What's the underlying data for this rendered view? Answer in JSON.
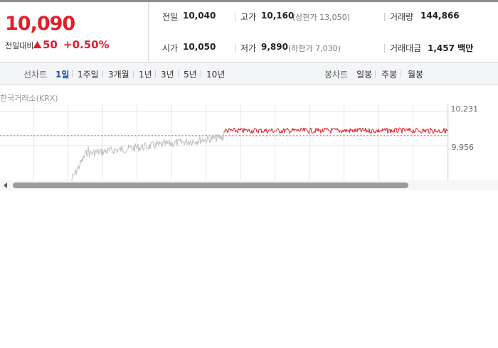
{
  "price": {
    "current": "10,090",
    "change_label": "전일대비",
    "change": "50",
    "change_rate": "+0.50%"
  },
  "stats": [
    {
      "label": "전일",
      "value": "10,040"
    },
    {
      "label": "고가",
      "value": "10,160",
      "note": "(상한가 13,050)"
    },
    {
      "label": "거래량",
      "value": "144,866"
    },
    {
      "label": "시가",
      "value": "10,050"
    },
    {
      "label": "저가",
      "value": "9,890",
      "note": "(하한가 7,030)"
    },
    {
      "label": "거래대금",
      "value": "1,457 백만"
    }
  ],
  "tabs": {
    "line_label": "선차트",
    "line": [
      "1일",
      "1주일",
      "3개월",
      "1년",
      "3년",
      "5년",
      "10년"
    ],
    "candle_label": "봉차트",
    "candle": [
      "일봉",
      "주봉",
      "월봉"
    ]
  },
  "chart": {
    "source": "한국거래소(KRX)",
    "yticks": [
      "10,231",
      "9,956"
    ]
  }
}
